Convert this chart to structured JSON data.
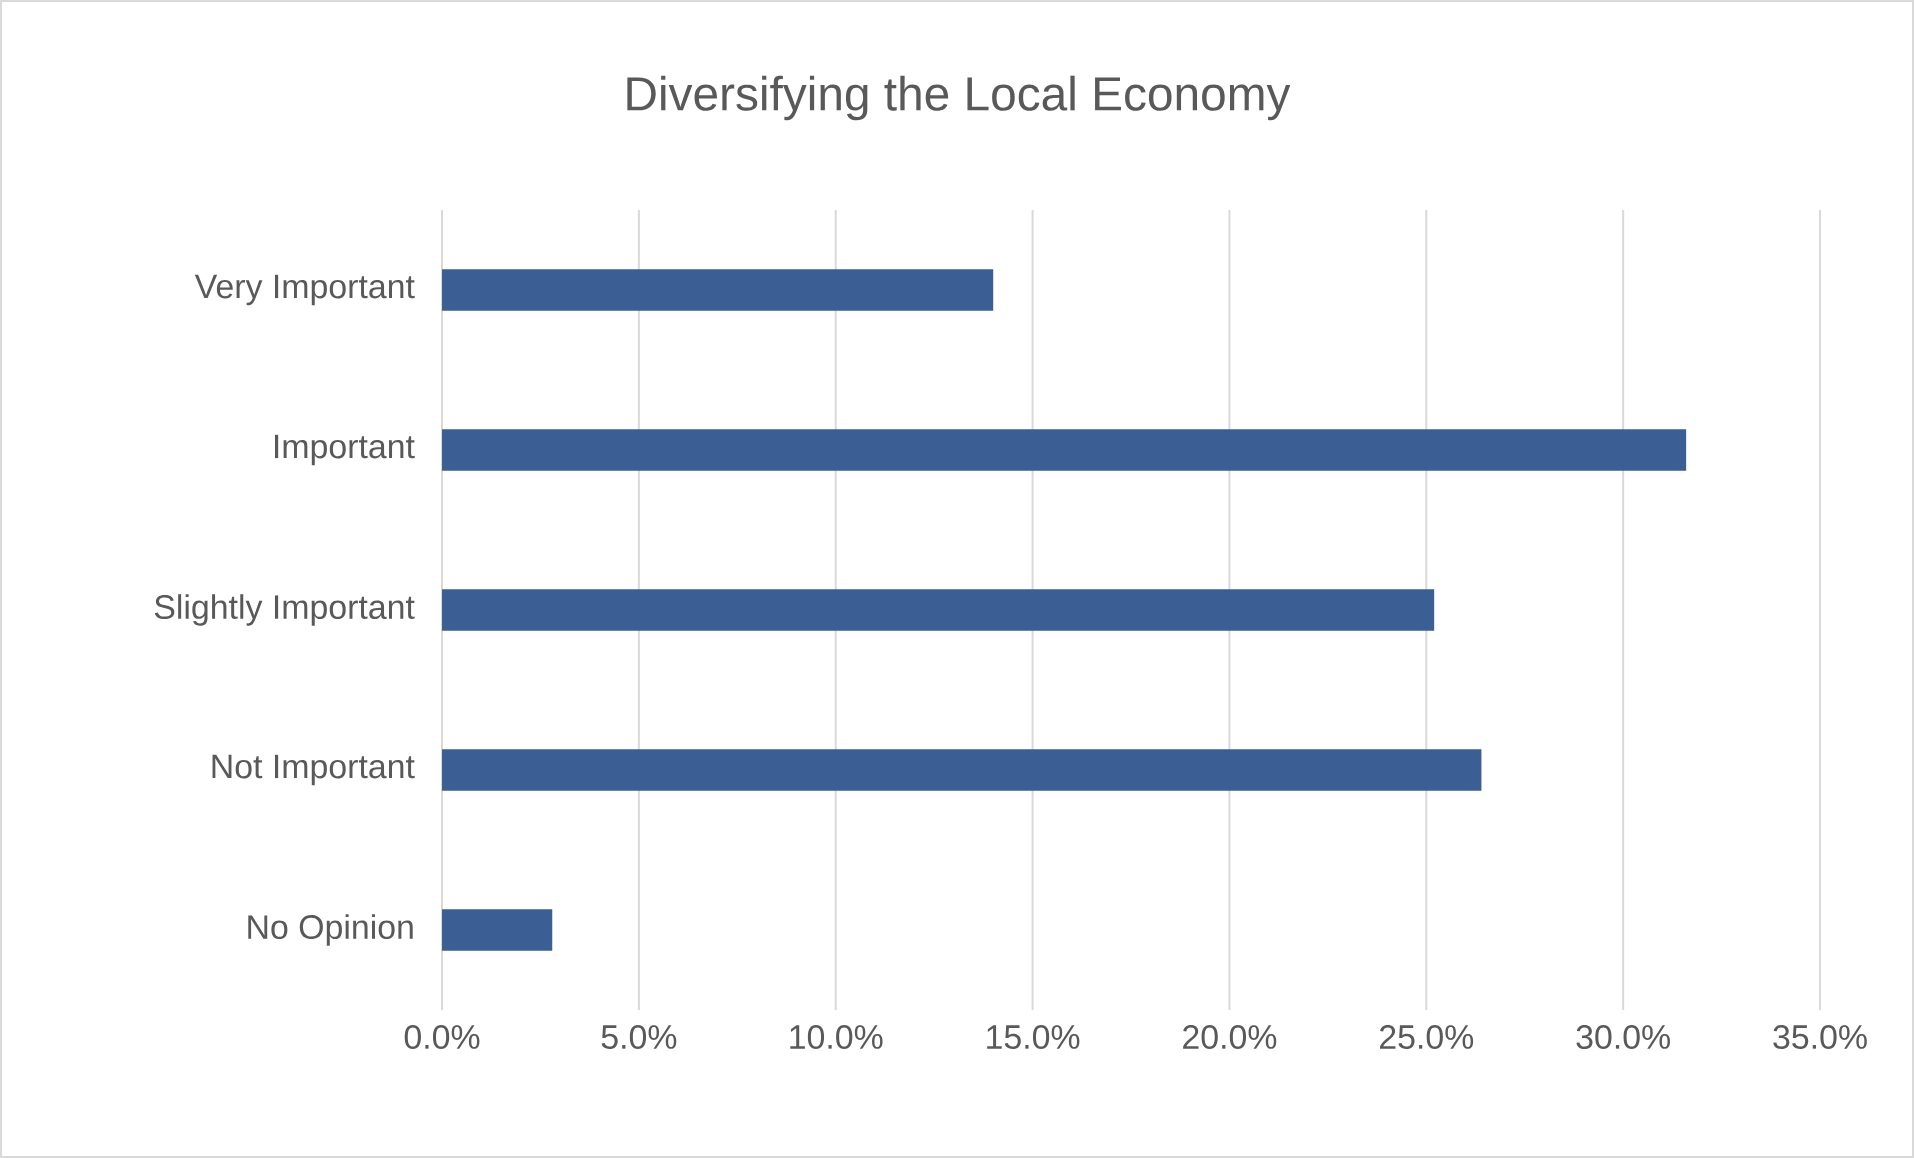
{
  "chart_data": {
    "type": "bar",
    "orientation": "horizontal",
    "title": "Diversifying the Local Economy",
    "categories": [
      "Very Important",
      "Important",
      "Slightly Important",
      "Not Important",
      "No Opinion"
    ],
    "values": [
      14.0,
      31.6,
      25.2,
      26.4,
      2.8
    ],
    "color": "#3b5f94",
    "xlim": [
      0,
      35
    ],
    "xticks": [
      {
        "value": 0,
        "label": "0.0%"
      },
      {
        "value": 5,
        "label": "5.0%"
      },
      {
        "value": 10,
        "label": "10.0%"
      },
      {
        "value": 15,
        "label": "15.0%"
      },
      {
        "value": 20,
        "label": "20.0%"
      },
      {
        "value": 25,
        "label": "25.0%"
      },
      {
        "value": 30,
        "label": "30.0%"
      },
      {
        "value": 35,
        "label": "35.0%"
      }
    ],
    "grid": "x"
  }
}
